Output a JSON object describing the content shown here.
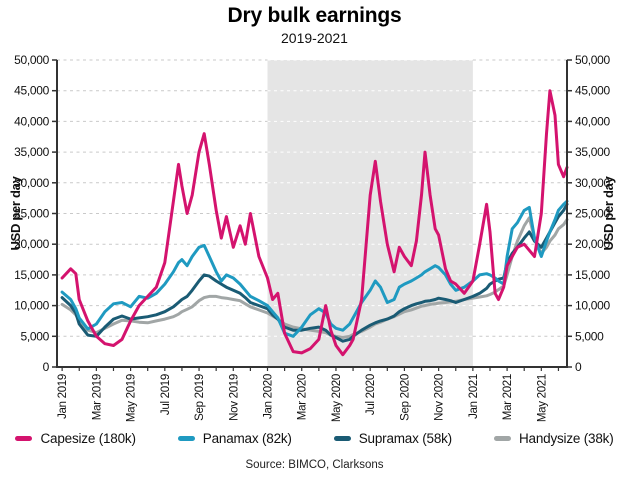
{
  "chart_data": {
    "type": "line",
    "title": "Dry bulk earnings",
    "subtitle": "2019-2021",
    "ylabel_left": "USD per day",
    "ylabel_right": "USD per day",
    "source": "Source: BIMCO, Clarksons",
    "legend_position": "bottom",
    "grid": "horizontal-dashed",
    "y_axis": {
      "min": 0,
      "max": 50000,
      "step": 5000,
      "tick_labels": [
        "0",
        "5,000",
        "10,000",
        "15,000",
        "20,000",
        "25,000",
        "30,000",
        "35,000",
        "40,000",
        "45,000",
        "50,000"
      ]
    },
    "x_axis": {
      "unit": "months since Jan 2019",
      "domain": [
        -0.3,
        29.5
      ],
      "minor_tick_every_months": 1,
      "tick_labels": [
        "Jan 2019",
        "Mar 2019",
        "May 2019",
        "Jul 2019",
        "Sep 2019",
        "Nov 2019",
        "Jan 2020",
        "Mar 2020",
        "May 2020",
        "Jul 2020",
        "Sep 2020",
        "Nov 2020",
        "Jan 2021",
        "Mar 2021",
        "May 2021"
      ],
      "tick_label_spacing_months": 2,
      "tick_label_rotation_deg": -90
    },
    "shaded_region": {
      "from_t": 12,
      "to_t": 24,
      "meaning_visible": "highlighted band Jan 2020 - Jan 2021",
      "color": "#e5e5e5"
    },
    "values_unit": "USD per day, thousands",
    "x": [
      0,
      0.5,
      0.8,
      1.0,
      1.5,
      2.0,
      2.5,
      3.0,
      3.5,
      4.0,
      4.5,
      5.0,
      5.5,
      6.0,
      6.5,
      6.8,
      7.0,
      7.3,
      7.6,
      8.0,
      8.3,
      8.6,
      9.0,
      9.3,
      9.6,
      10.0,
      10.4,
      10.7,
      11.0,
      11.5,
      12.0,
      12.3,
      12.6,
      13.0,
      13.5,
      14.0,
      14.5,
      15.0,
      15.4,
      15.7,
      16.0,
      16.4,
      16.8,
      17.0,
      17.5,
      18.0,
      18.3,
      18.6,
      19.0,
      19.4,
      19.7,
      20.0,
      20.4,
      20.7,
      21.0,
      21.2,
      21.5,
      21.8,
      22.0,
      22.4,
      22.7,
      23.0,
      23.5,
      24.0,
      24.4,
      24.8,
      25.0,
      25.3,
      25.5,
      25.8,
      26.0,
      26.3,
      26.6,
      27.0,
      27.3,
      27.6,
      28.0,
      28.3,
      28.5,
      28.8,
      29.0,
      29.3,
      29.5
    ],
    "series": [
      {
        "name": "Capesize (180k)",
        "color": "#d4136e",
        "values_thousands": [
          14.5,
          16.0,
          15.2,
          11.0,
          7.5,
          5.0,
          3.8,
          3.5,
          4.5,
          7.5,
          10.0,
          11.5,
          13.0,
          17.0,
          27.0,
          33.0,
          29.5,
          25.0,
          28.0,
          35.0,
          38.0,
          33.0,
          25.5,
          21.0,
          24.5,
          19.5,
          23.0,
          20.0,
          25.0,
          18.0,
          14.5,
          11.0,
          12.0,
          5.5,
          2.5,
          2.3,
          3.0,
          4.5,
          10.0,
          6.0,
          3.5,
          2.0,
          3.5,
          4.5,
          11.0,
          28.0,
          33.5,
          27.0,
          20.0,
          15.5,
          19.5,
          18.0,
          16.5,
          20.5,
          28.0,
          35.0,
          28.0,
          22.5,
          21.5,
          16.0,
          14.0,
          13.5,
          12.0,
          14.0,
          20.0,
          26.5,
          22.0,
          12.0,
          11.0,
          13.0,
          16.5,
          18.0,
          19.5,
          20.0,
          19.0,
          18.0,
          25.0,
          38.0,
          45.0,
          41.0,
          33.0,
          31.0,
          32.5
        ]
      },
      {
        "name": "Panamax (82k)",
        "color": "#1f9ac1",
        "values_thousands": [
          12.2,
          11.0,
          9.5,
          8.0,
          6.2,
          7.0,
          9.0,
          10.3,
          10.5,
          9.8,
          11.5,
          11.2,
          12.0,
          13.5,
          15.5,
          17.0,
          17.5,
          16.5,
          18.0,
          19.5,
          19.8,
          18.0,
          15.5,
          14.0,
          15.0,
          14.5,
          13.5,
          12.5,
          11.5,
          10.8,
          10.0,
          9.0,
          8.0,
          5.5,
          5.0,
          6.5,
          8.5,
          9.5,
          8.8,
          7.0,
          6.3,
          6.0,
          7.0,
          8.0,
          10.5,
          12.5,
          14.0,
          13.0,
          10.5,
          11.0,
          13.0,
          13.5,
          14.0,
          14.5,
          15.0,
          15.5,
          16.0,
          16.5,
          16.2,
          15.0,
          13.5,
          12.5,
          13.0,
          14.0,
          15.0,
          15.2,
          15.0,
          14.5,
          14.0,
          13.5,
          18.0,
          22.5,
          23.5,
          25.5,
          26.0,
          21.0,
          18.0,
          20.5,
          22.0,
          24.0,
          25.5,
          26.5,
          27.0
        ]
      },
      {
        "name": "Supramax (58k)",
        "color": "#1a5b74",
        "values_thousands": [
          11.3,
          10.0,
          8.8,
          7.0,
          5.2,
          5.0,
          6.5,
          7.8,
          8.3,
          7.8,
          8.0,
          8.2,
          8.5,
          9.0,
          9.8,
          10.5,
          11.0,
          11.5,
          12.5,
          14.0,
          15.0,
          14.8,
          14.0,
          13.5,
          13.0,
          12.5,
          12.0,
          11.3,
          10.5,
          10.0,
          9.5,
          8.5,
          7.8,
          6.5,
          6.0,
          6.0,
          6.3,
          6.5,
          6.0,
          5.2,
          4.8,
          4.2,
          4.5,
          5.0,
          6.0,
          6.8,
          7.2,
          7.5,
          7.8,
          8.3,
          9.0,
          9.5,
          10.0,
          10.3,
          10.5,
          10.7,
          10.8,
          11.0,
          11.2,
          11.0,
          10.8,
          10.5,
          11.0,
          11.5,
          12.0,
          12.8,
          13.5,
          14.0,
          14.3,
          14.5,
          17.0,
          18.5,
          19.5,
          21.0,
          22.0,
          20.5,
          19.5,
          21.0,
          22.0,
          23.5,
          24.5,
          25.5,
          26.5
        ]
      },
      {
        "name": "Handysize (38k)",
        "color": "#a1a6a6",
        "values_thousands": [
          10.2,
          9.3,
          8.5,
          7.5,
          6.0,
          5.6,
          6.3,
          7.0,
          7.6,
          7.5,
          7.3,
          7.2,
          7.5,
          7.8,
          8.2,
          8.6,
          9.0,
          9.4,
          9.8,
          10.8,
          11.3,
          11.5,
          11.5,
          11.3,
          11.2,
          11.0,
          10.8,
          10.3,
          9.8,
          9.3,
          8.8,
          8.3,
          7.8,
          7.0,
          6.5,
          6.2,
          6.0,
          5.8,
          5.6,
          5.2,
          5.0,
          4.8,
          5.0,
          5.3,
          5.8,
          6.5,
          7.0,
          7.3,
          7.8,
          8.2,
          8.6,
          9.0,
          9.3,
          9.6,
          9.9,
          10.0,
          10.2,
          10.3,
          10.4,
          10.5,
          10.6,
          10.7,
          11.0,
          11.2,
          11.4,
          11.6,
          11.8,
          12.2,
          12.6,
          13.2,
          15.0,
          18.0,
          20.5,
          23.0,
          24.3,
          21.0,
          18.5,
          19.5,
          20.5,
          21.5,
          22.5,
          23.2,
          24.0
        ]
      }
    ],
    "colors": {
      "grid": "#c9c9c9",
      "grid_in_band": "#ffffff",
      "axis": "#333333",
      "shading": "#e5e5e5"
    }
  }
}
